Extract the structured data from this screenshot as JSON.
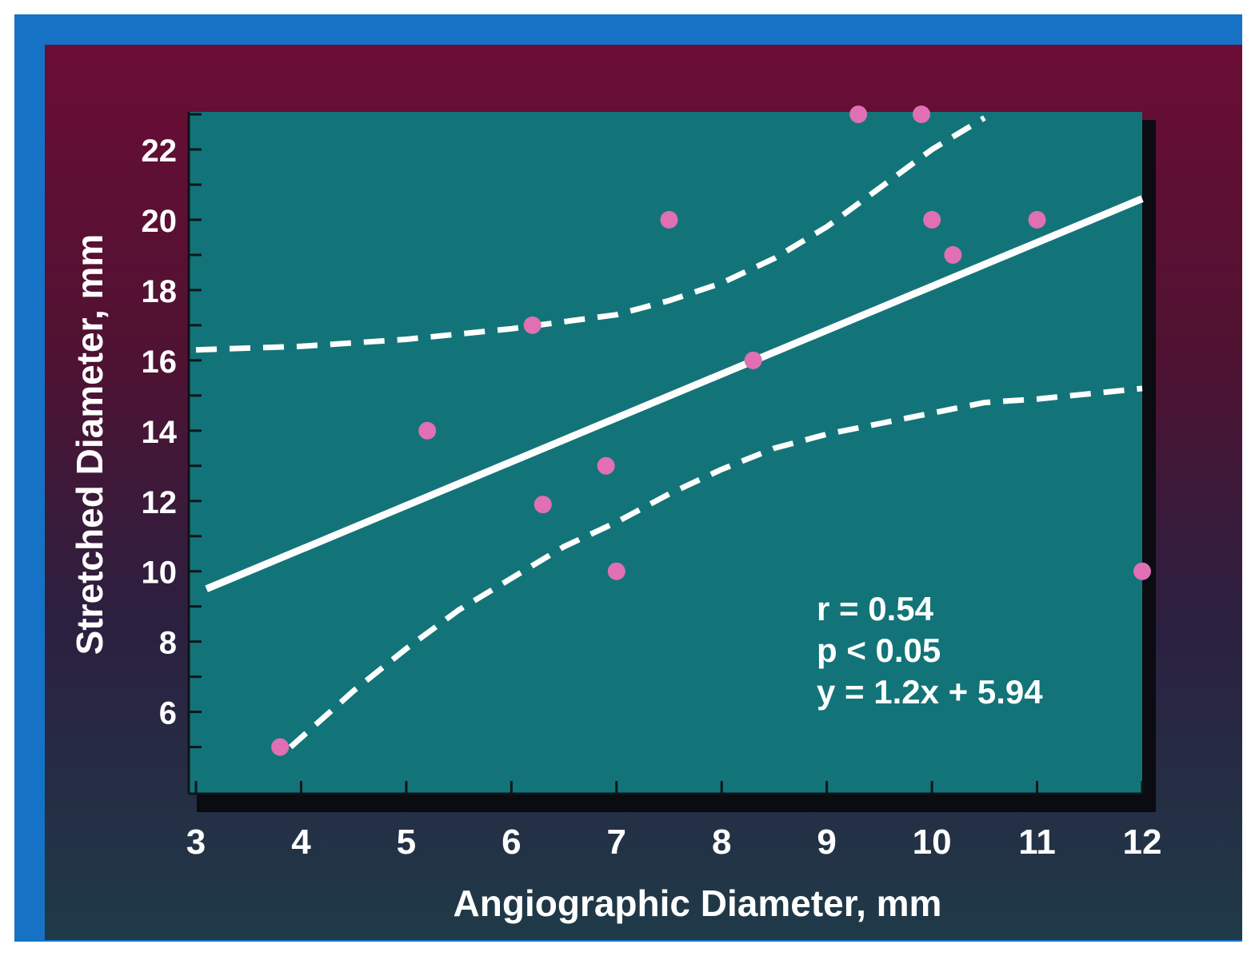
{
  "colors": {
    "frame": "#1672c4",
    "plot_background": "#127478",
    "plot_shadow": "#0b0b12",
    "point_fill": "#e06fb4",
    "line": "#ffffff",
    "text": "#ffffff"
  },
  "chart_data": {
    "type": "scatter",
    "title": "",
    "xlabel": "Angiographic Diameter, mm",
    "ylabel": "Stretched Diameter, mm",
    "xlim": [
      3,
      12
    ],
    "ylim": [
      4.4,
      23
    ],
    "x_ticks": [
      3,
      4,
      5,
      6,
      7,
      8,
      9,
      10,
      11,
      12
    ],
    "x_tick_labels": [
      "3",
      "4",
      "5",
      "6",
      "7",
      "8",
      "9",
      "10",
      "11",
      "12"
    ],
    "y_ticks": [
      6,
      8,
      10,
      12,
      14,
      16,
      18,
      20,
      22
    ],
    "y_tick_labels": [
      "6",
      "8",
      "10",
      "12",
      "14",
      "16",
      "18",
      "20",
      "22"
    ],
    "y_minor_ticks": [
      5,
      7,
      9,
      11,
      13,
      15,
      17,
      19,
      21,
      23
    ],
    "grid": false,
    "series": [
      {
        "points": [
          {
            "x": 3.8,
            "y": 5.0
          },
          {
            "x": 5.2,
            "y": 14.0
          },
          {
            "x": 6.2,
            "y": 17.0
          },
          {
            "x": 6.3,
            "y": 11.9
          },
          {
            "x": 6.9,
            "y": 13.0
          },
          {
            "x": 7.0,
            "y": 10.0
          },
          {
            "x": 7.5,
            "y": 20.0
          },
          {
            "x": 8.3,
            "y": 16.0
          },
          {
            "x": 9.3,
            "y": 23.0
          },
          {
            "x": 9.9,
            "y": 23.0
          },
          {
            "x": 10.0,
            "y": 20.0
          },
          {
            "x": 10.2,
            "y": 19.0
          },
          {
            "x": 11.0,
            "y": 20.0
          },
          {
            "x": 12.0,
            "y": 10.0
          }
        ]
      }
    ],
    "regression_line": [
      {
        "x": 3.1,
        "y": 9.5
      },
      {
        "x": 12.0,
        "y": 20.6
      }
    ],
    "confidence_band_upper": [
      {
        "x": 3.0,
        "y": 16.3
      },
      {
        "x": 4.0,
        "y": 16.4
      },
      {
        "x": 5.0,
        "y": 16.6
      },
      {
        "x": 6.0,
        "y": 16.9
      },
      {
        "x": 7.0,
        "y": 17.3
      },
      {
        "x": 7.5,
        "y": 17.7
      },
      {
        "x": 8.0,
        "y": 18.2
      },
      {
        "x": 8.5,
        "y": 18.9
      },
      {
        "x": 9.0,
        "y": 19.8
      },
      {
        "x": 9.5,
        "y": 20.9
      },
      {
        "x": 10.0,
        "y": 22.0
      },
      {
        "x": 10.5,
        "y": 22.9
      }
    ],
    "confidence_band_lower": [
      {
        "x": 3.9,
        "y": 5.0
      },
      {
        "x": 4.5,
        "y": 6.6
      },
      {
        "x": 5.0,
        "y": 7.8
      },
      {
        "x": 5.5,
        "y": 8.9
      },
      {
        "x": 6.0,
        "y": 9.8
      },
      {
        "x": 6.5,
        "y": 10.7
      },
      {
        "x": 7.0,
        "y": 11.4
      },
      {
        "x": 7.5,
        "y": 12.2
      },
      {
        "x": 8.0,
        "y": 12.9
      },
      {
        "x": 8.5,
        "y": 13.5
      },
      {
        "x": 9.0,
        "y": 13.9
      },
      {
        "x": 9.5,
        "y": 14.2
      },
      {
        "x": 10.0,
        "y": 14.5
      },
      {
        "x": 10.5,
        "y": 14.8
      },
      {
        "x": 11.0,
        "y": 14.9
      },
      {
        "x": 12.0,
        "y": 15.2
      }
    ],
    "annotations": [
      "r = 0.54",
      "p < 0.05",
      "y = 1.2x + 5.94"
    ]
  }
}
